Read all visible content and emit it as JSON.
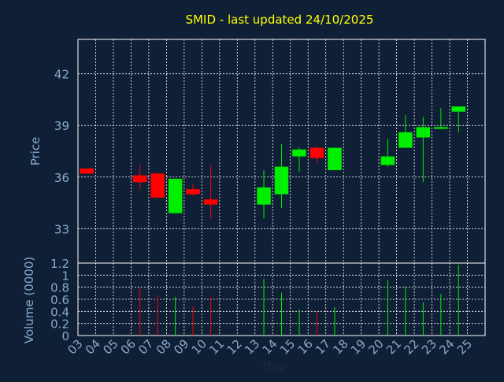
{
  "chart_data": {
    "type": "candlestick",
    "title": "SMID - last updated 24/10/2025",
    "xlabel": "Day",
    "grid": true,
    "colors": {
      "background": "#0f1f35",
      "title": "#ffff00",
      "axis_text": "#88aacc",
      "grid": "#ffffff",
      "up": "#00ee00",
      "down": "#ff0000"
    },
    "x_ticks": [
      "03",
      "04",
      "05",
      "06",
      "07",
      "08",
      "09",
      "10",
      "11",
      "12",
      "13",
      "14",
      "15",
      "16",
      "17",
      "18",
      "19",
      "20",
      "21",
      "22",
      "23",
      "24",
      "25"
    ],
    "price_panel": {
      "ylabel": "Price",
      "ylim": [
        31.0,
        44.0
      ],
      "y_ticks": [
        "33",
        "36",
        "39",
        "42"
      ],
      "candles": [
        {
          "day": 3,
          "open": 36.5,
          "high": 36.5,
          "low": 36.2,
          "close": 36.2
        },
        {
          "day": 6,
          "open": 36.1,
          "high": 36.7,
          "low": 35.3,
          "close": 35.7
        },
        {
          "day": 7,
          "open": 36.2,
          "high": 36.3,
          "low": 34.8,
          "close": 34.8
        },
        {
          "day": 8,
          "open": 33.9,
          "high": 35.9,
          "low": 33.9,
          "close": 35.9
        },
        {
          "day": 9,
          "open": 35.3,
          "high": 35.6,
          "low": 34.9,
          "close": 35.0
        },
        {
          "day": 10,
          "open": 34.7,
          "high": 36.7,
          "low": 33.6,
          "close": 34.4
        },
        {
          "day": 13,
          "open": 34.4,
          "high": 36.4,
          "low": 33.6,
          "close": 35.4
        },
        {
          "day": 14,
          "open": 35.0,
          "high": 37.9,
          "low": 34.2,
          "close": 36.6
        },
        {
          "day": 15,
          "open": 37.2,
          "high": 37.7,
          "low": 36.3,
          "close": 37.6
        },
        {
          "day": 16,
          "open": 37.7,
          "high": 37.8,
          "low": 36.8,
          "close": 37.1
        },
        {
          "day": 17,
          "open": 36.4,
          "high": 37.7,
          "low": 36.4,
          "close": 37.7
        },
        {
          "day": 20,
          "open": 36.7,
          "high": 38.2,
          "low": 36.6,
          "close": 37.2
        },
        {
          "day": 21,
          "open": 37.7,
          "high": 39.6,
          "low": 37.7,
          "close": 38.6
        },
        {
          "day": 22,
          "open": 38.3,
          "high": 39.5,
          "low": 35.7,
          "close": 38.9
        },
        {
          "day": 23,
          "open": 38.8,
          "high": 40.0,
          "low": 38.8,
          "close": 38.9
        },
        {
          "day": 24,
          "open": 39.8,
          "high": 40.1,
          "low": 38.6,
          "close": 40.1
        }
      ]
    },
    "volume_panel": {
      "ylabel": "Volume (0000)",
      "ylim": [
        0,
        1.2
      ],
      "y_ticks": [
        "0",
        "0.2",
        "0.4",
        "0.6",
        "0.8",
        "1",
        "1.2"
      ],
      "bars": [
        {
          "day": 6,
          "value": 0.79
        },
        {
          "day": 7,
          "value": 0.67
        },
        {
          "day": 8,
          "value": 0.64
        },
        {
          "day": 9,
          "value": 0.48
        },
        {
          "day": 10,
          "value": 0.64
        },
        {
          "day": 13,
          "value": 0.94
        },
        {
          "day": 14,
          "value": 0.71
        },
        {
          "day": 15,
          "value": 0.43
        },
        {
          "day": 16,
          "value": 0.4
        },
        {
          "day": 17,
          "value": 0.47
        },
        {
          "day": 20,
          "value": 0.92
        },
        {
          "day": 21,
          "value": 0.81
        },
        {
          "day": 22,
          "value": 0.55
        },
        {
          "day": 23,
          "value": 0.69
        },
        {
          "day": 24,
          "value": 1.17
        }
      ]
    }
  }
}
